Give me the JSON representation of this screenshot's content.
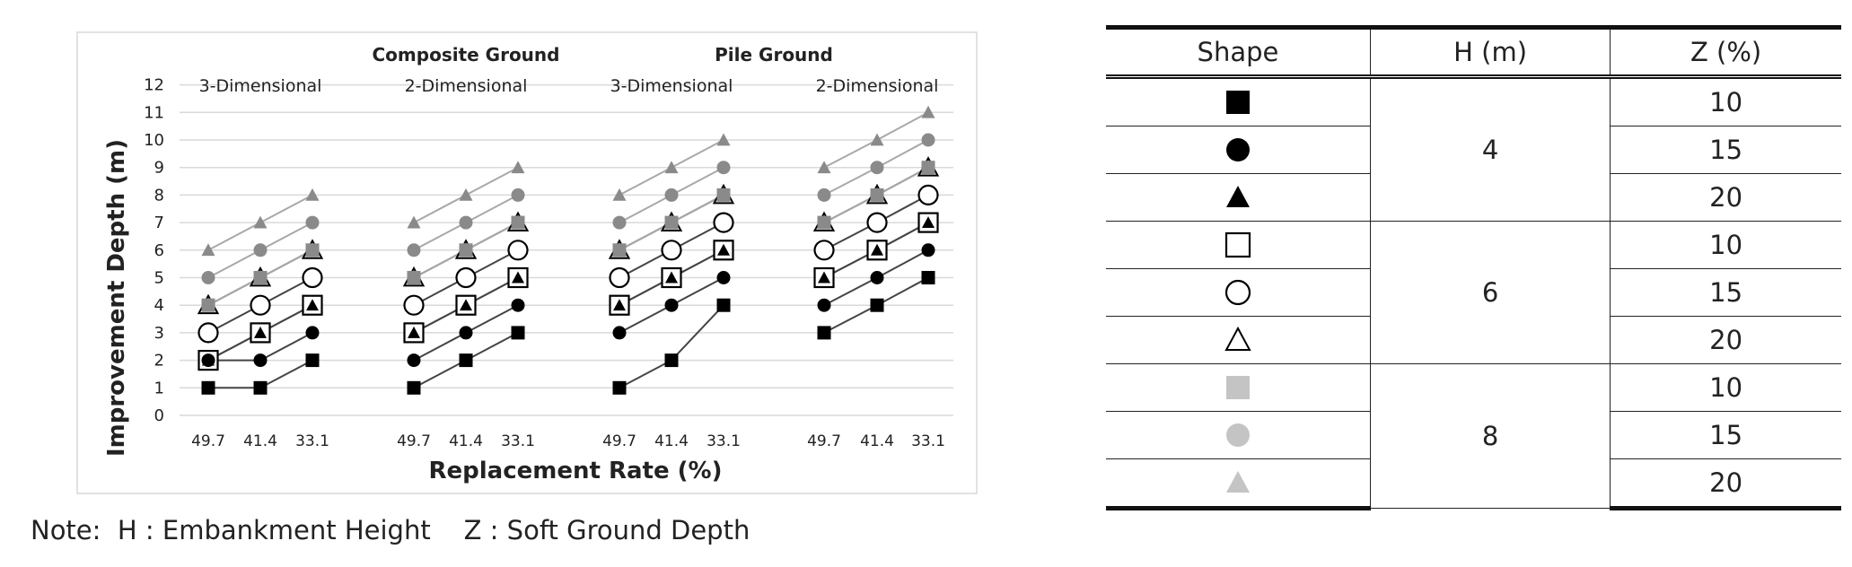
{
  "chart_data": {
    "type": "line",
    "ylabel": "Improvement Depth (m)",
    "xlabel": "Replacement Rate (%)",
    "ylim": [
      0,
      12
    ],
    "yticks": [
      "0",
      "1",
      "2",
      "3",
      "4",
      "5",
      "6",
      "7",
      "8",
      "9",
      "10",
      "11",
      "12"
    ],
    "group_headers": [
      {
        "label": "Composite Ground"
      },
      {
        "label": "Pile Ground"
      }
    ],
    "panels": [
      {
        "label": "3-Dimensional",
        "categories": [
          "49.7",
          "41.4",
          "33.1"
        ],
        "series": [
          {
            "shape": "square-filled",
            "color": "#000000",
            "values": [
              1,
              1,
              2
            ]
          },
          {
            "shape": "circle-filled",
            "color": "#000000",
            "values": [
              2,
              2,
              3
            ]
          },
          {
            "shape": "triangle-filled",
            "color": "#000000",
            "values": [
              2,
              3,
              4
            ]
          },
          {
            "shape": "square-open",
            "color": "#000000",
            "values": [
              2,
              3,
              4
            ]
          },
          {
            "shape": "circle-open",
            "color": "#000000",
            "values": [
              3,
              4,
              5
            ]
          },
          {
            "shape": "triangle-open",
            "color": "#000000",
            "values": [
              4,
              5,
              6
            ]
          },
          {
            "shape": "square-filled",
            "color": "#8a8a8a",
            "values": [
              4,
              5,
              6
            ]
          },
          {
            "shape": "circle-filled",
            "color": "#8a8a8a",
            "values": [
              5,
              6,
              7
            ]
          },
          {
            "shape": "triangle-filled",
            "color": "#8a8a8a",
            "values": [
              6,
              7,
              8
            ]
          }
        ]
      },
      {
        "label": "2-Dimensional",
        "categories": [
          "49.7",
          "41.4",
          "33.1"
        ],
        "series": [
          {
            "shape": "square-filled",
            "color": "#000000",
            "values": [
              1,
              2,
              3
            ]
          },
          {
            "shape": "circle-filled",
            "color": "#000000",
            "values": [
              2,
              3,
              4
            ]
          },
          {
            "shape": "triangle-filled",
            "color": "#000000",
            "values": [
              3,
              4,
              5
            ]
          },
          {
            "shape": "square-open",
            "color": "#000000",
            "values": [
              3,
              4,
              5
            ]
          },
          {
            "shape": "circle-open",
            "color": "#000000",
            "values": [
              4,
              5,
              6
            ]
          },
          {
            "shape": "triangle-open",
            "color": "#000000",
            "values": [
              5,
              6,
              7
            ]
          },
          {
            "shape": "square-filled",
            "color": "#8a8a8a",
            "values": [
              5,
              6,
              7
            ]
          },
          {
            "shape": "circle-filled",
            "color": "#8a8a8a",
            "values": [
              6,
              7,
              8
            ]
          },
          {
            "shape": "triangle-filled",
            "color": "#8a8a8a",
            "values": [
              7,
              8,
              9
            ]
          }
        ]
      },
      {
        "label": "3-Dimensional",
        "categories": [
          "49.7",
          "41.4",
          "33.1"
        ],
        "series": [
          {
            "shape": "square-filled",
            "color": "#000000",
            "values": [
              1,
              2,
              4
            ]
          },
          {
            "shape": "circle-filled",
            "color": "#000000",
            "values": [
              3,
              4,
              5
            ]
          },
          {
            "shape": "triangle-filled",
            "color": "#000000",
            "values": [
              4,
              5,
              6
            ]
          },
          {
            "shape": "square-open",
            "color": "#000000",
            "values": [
              4,
              5,
              6
            ]
          },
          {
            "shape": "circle-open",
            "color": "#000000",
            "values": [
              5,
              6,
              7
            ]
          },
          {
            "shape": "triangle-open",
            "color": "#000000",
            "values": [
              6,
              7,
              8
            ]
          },
          {
            "shape": "square-filled",
            "color": "#8a8a8a",
            "values": [
              6,
              7,
              8
            ]
          },
          {
            "shape": "circle-filled",
            "color": "#8a8a8a",
            "values": [
              7,
              8,
              9
            ]
          },
          {
            "shape": "triangle-filled",
            "color": "#8a8a8a",
            "values": [
              8,
              9,
              10
            ]
          }
        ]
      },
      {
        "label": "2-Dimensional",
        "categories": [
          "49.7",
          "41.4",
          "33.1"
        ],
        "series": [
          {
            "shape": "square-filled",
            "color": "#000000",
            "values": [
              3,
              4,
              5
            ]
          },
          {
            "shape": "circle-filled",
            "color": "#000000",
            "values": [
              4,
              5,
              6
            ]
          },
          {
            "shape": "triangle-filled",
            "color": "#000000",
            "values": [
              5,
              6,
              7
            ]
          },
          {
            "shape": "square-open",
            "color": "#000000",
            "values": [
              5,
              6,
              7
            ]
          },
          {
            "shape": "circle-open",
            "color": "#000000",
            "values": [
              6,
              7,
              8
            ]
          },
          {
            "shape": "triangle-open",
            "color": "#000000",
            "values": [
              7,
              8,
              9
            ]
          },
          {
            "shape": "square-filled",
            "color": "#8a8a8a",
            "values": [
              7,
              8,
              9
            ]
          },
          {
            "shape": "circle-filled",
            "color": "#8a8a8a",
            "values": [
              8,
              9,
              10
            ]
          },
          {
            "shape": "triangle-filled",
            "color": "#8a8a8a",
            "values": [
              9,
              10,
              11
            ]
          }
        ]
      }
    ],
    "grid": true,
    "legend": "right"
  },
  "note": "Note:  H : Embankment Height    Z : Soft Ground Depth",
  "legend_table": {
    "headers": [
      "Shape",
      "H (m)",
      "Z (%)"
    ],
    "rows": [
      {
        "shape": "square-filled",
        "color": "#000000",
        "h": "4",
        "z": "10"
      },
      {
        "shape": "circle-filled",
        "color": "#000000",
        "h": "",
        "z": "15"
      },
      {
        "shape": "triangle-filled",
        "color": "#000000",
        "h": "",
        "z": "20"
      },
      {
        "shape": "square-open",
        "color": "#000000",
        "h": "6",
        "z": "10"
      },
      {
        "shape": "circle-open",
        "color": "#000000",
        "h": "",
        "z": "15"
      },
      {
        "shape": "triangle-open",
        "color": "#000000",
        "h": "",
        "z": "20"
      },
      {
        "shape": "square-filled",
        "color": "#c4c4c4",
        "h": "8",
        "z": "10"
      },
      {
        "shape": "circle-filled",
        "color": "#c4c4c4",
        "h": "",
        "z": "15"
      },
      {
        "shape": "triangle-filled",
        "color": "#c4c4c4",
        "h": "",
        "z": "20"
      }
    ]
  }
}
